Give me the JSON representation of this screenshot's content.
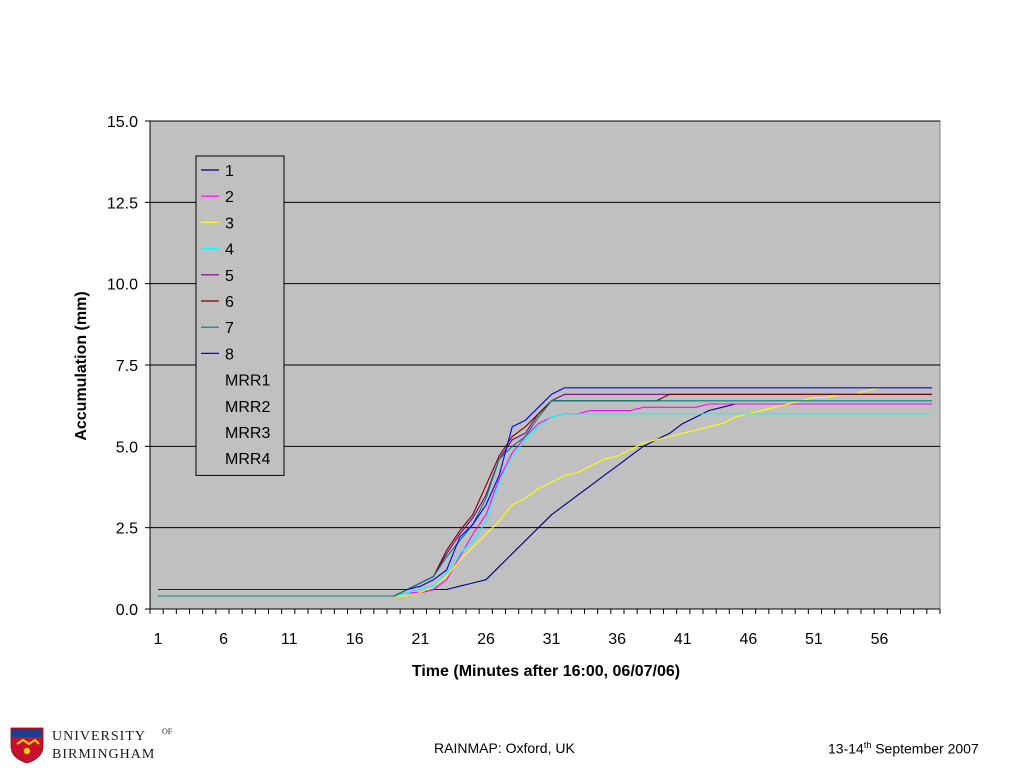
{
  "footer": {
    "center": "RAINMAP: Oxford, UK",
    "date_prefix": "13-14",
    "date_sup": "th",
    "date_suffix": " September 2007"
  },
  "logo": {
    "university_line1": "UNIVERSITY",
    "university_of": "OF",
    "university_line2": "BIRMINGHAM"
  },
  "chart_data": {
    "type": "line",
    "xlabel": "Time (Minutes after 16:00, 06/07/06)",
    "ylabel": "Accumulation (mm)",
    "xlim": [
      1,
      60
    ],
    "ylim": [
      0,
      15
    ],
    "yticks": [
      "0.0",
      "2.5",
      "5.0",
      "7.5",
      "10.0",
      "12.5",
      "15.0"
    ],
    "xticks": [
      1,
      6,
      11,
      16,
      21,
      26,
      31,
      36,
      41,
      46,
      51,
      56
    ],
    "grid": true,
    "legend_position": "top-left",
    "plot_background": "#c0c0c0",
    "series": [
      {
        "name": "1",
        "color": "#000080",
        "x": [
          1,
          20,
          21,
          22,
          23,
          24,
          25,
          26,
          27,
          28,
          29,
          30,
          31,
          32,
          33,
          34,
          35,
          36,
          37,
          38,
          39,
          40,
          41,
          42,
          43,
          44,
          45,
          46,
          47,
          48,
          49,
          50,
          51,
          52,
          53,
          54,
          55,
          56,
          57,
          58,
          59,
          60
        ],
        "y": [
          0.4,
          0.4,
          0.5,
          0.6,
          0.6,
          0.7,
          0.8,
          0.9,
          1.3,
          1.7,
          2.1,
          2.5,
          2.9,
          3.2,
          3.5,
          3.8,
          4.1,
          4.4,
          4.7,
          5.0,
          5.2,
          5.4,
          5.7,
          5.9,
          6.1,
          6.2,
          6.3,
          6.3,
          6.3,
          6.3,
          6.3,
          6.3,
          6.3,
          6.3,
          6.3,
          6.3,
          6.3,
          6.3,
          6.3,
          6.3,
          6.3,
          6.3
        ]
      },
      {
        "name": "2",
        "color": "#ff00ff",
        "x": [
          1,
          19,
          20,
          21,
          22,
          23,
          24,
          25,
          26,
          27,
          28,
          29,
          30,
          31,
          32,
          33,
          34,
          35,
          36,
          37,
          38,
          39,
          40,
          41,
          42,
          43,
          44,
          45,
          60
        ],
        "y": [
          0.4,
          0.4,
          0.5,
          0.5,
          0.6,
          0.9,
          1.6,
          2.3,
          2.9,
          4.0,
          4.8,
          5.3,
          5.7,
          5.9,
          6.0,
          6.0,
          6.1,
          6.1,
          6.1,
          6.1,
          6.2,
          6.2,
          6.2,
          6.2,
          6.2,
          6.3,
          6.3,
          6.3,
          6.3
        ]
      },
      {
        "name": "3",
        "color": "#ffff00",
        "x": [
          1,
          19,
          20,
          21,
          22,
          23,
          24,
          25,
          26,
          27,
          28,
          29,
          30,
          31,
          32,
          33,
          34,
          35,
          36,
          37,
          38,
          39,
          40,
          41,
          42,
          43,
          44,
          45,
          46,
          47,
          48,
          49,
          50,
          51,
          52,
          53,
          54,
          55,
          56
        ],
        "y": [
          0.4,
          0.4,
          0.4,
          0.5,
          0.7,
          1.0,
          1.5,
          1.9,
          2.3,
          2.7,
          3.2,
          3.4,
          3.7,
          3.9,
          4.1,
          4.2,
          4.4,
          4.6,
          4.7,
          4.9,
          5.1,
          5.2,
          5.3,
          5.4,
          5.5,
          5.6,
          5.7,
          5.9,
          6.0,
          6.1,
          6.2,
          6.3,
          6.4,
          6.5,
          6.5,
          6.6,
          6.6,
          6.7,
          6.8
        ]
      },
      {
        "name": "4",
        "color": "#00ffff",
        "x": [
          1,
          19,
          20,
          21,
          22,
          23,
          24,
          25,
          26,
          27,
          28,
          29,
          30,
          31,
          32,
          33,
          60
        ],
        "y": [
          0.4,
          0.4,
          0.5,
          0.6,
          0.7,
          1.1,
          1.7,
          2.1,
          2.7,
          3.9,
          4.7,
          5.2,
          5.6,
          5.9,
          6.0,
          6.0,
          6.0
        ]
      },
      {
        "name": "5",
        "color": "#800080",
        "x": [
          1,
          19,
          20,
          21,
          22,
          23,
          24,
          25,
          26,
          27,
          28,
          29,
          30,
          31,
          32,
          60
        ],
        "y": [
          0.4,
          0.4,
          0.6,
          0.8,
          1.0,
          1.7,
          2.3,
          2.8,
          3.5,
          4.6,
          5.2,
          5.4,
          6.0,
          6.4,
          6.6,
          6.6
        ]
      },
      {
        "name": "6",
        "color": "#800000",
        "x": [
          1,
          19,
          20,
          21,
          22,
          23,
          24,
          25,
          26,
          27,
          28,
          29,
          30,
          31,
          39,
          40,
          60
        ],
        "y": [
          0.4,
          0.4,
          0.6,
          0.8,
          1.0,
          1.8,
          2.4,
          2.9,
          3.8,
          4.7,
          5.3,
          5.6,
          6.0,
          6.4,
          6.4,
          6.6,
          6.6
        ]
      },
      {
        "name": "7",
        "color": "#008080",
        "x": [
          1,
          19,
          20,
          21,
          22,
          23,
          24,
          25,
          26,
          27,
          28,
          29,
          30,
          31,
          60
        ],
        "y": [
          0.4,
          0.4,
          0.6,
          0.8,
          1.0,
          1.6,
          2.1,
          2.6,
          3.4,
          4.6,
          5.0,
          5.3,
          5.9,
          6.4,
          6.4
        ]
      },
      {
        "name": "8",
        "color": "#0000ff",
        "x": [
          1,
          20,
          21,
          22,
          23,
          24,
          25,
          26,
          27,
          28,
          29,
          30,
          31,
          32,
          60
        ],
        "y": [
          0.6,
          0.6,
          0.7,
          0.9,
          1.2,
          2.2,
          2.6,
          3.2,
          4.1,
          5.6,
          5.8,
          6.2,
          6.6,
          6.8,
          6.8
        ]
      },
      {
        "name": "MRR1",
        "color": "#c0c0c0",
        "x": [],
        "y": []
      },
      {
        "name": "MRR2",
        "color": "#c0c0c0",
        "x": [],
        "y": []
      },
      {
        "name": "MRR3",
        "color": "#c0c0c0",
        "x": [],
        "y": []
      },
      {
        "name": "MRR4",
        "color": "#c0c0c0",
        "x": [],
        "y": []
      }
    ]
  }
}
